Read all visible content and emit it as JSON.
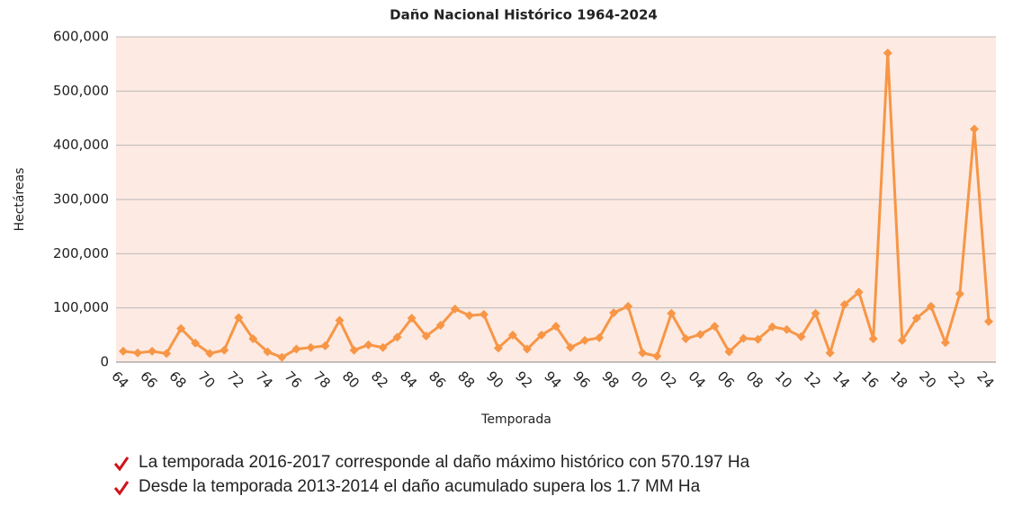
{
  "chart_data": {
    "type": "line",
    "title": "Daño Nacional Histórico 1964-2024",
    "x_label": "Temporada",
    "y_label": "Hectáreas",
    "categories": [
      "64",
      null,
      "66",
      null,
      "68",
      null,
      "70",
      null,
      "72",
      null,
      "74",
      null,
      "76",
      null,
      "78",
      null,
      "80",
      null,
      "82",
      null,
      "84",
      null,
      "86",
      null,
      "88",
      null,
      "90",
      null,
      "92",
      null,
      "94",
      null,
      "96",
      null,
      "98",
      null,
      "00",
      null,
      "02",
      null,
      "04",
      null,
      "06",
      null,
      "08",
      null,
      "10",
      null,
      "12",
      null,
      "14",
      null,
      "16",
      null,
      "18",
      null,
      "20",
      null,
      "22",
      null,
      "24"
    ],
    "series": [
      {
        "name": "Hectáreas",
        "color": "#f79646",
        "values": [
          20000,
          17000,
          20000,
          16000,
          62000,
          35000,
          16000,
          22000,
          82000,
          43000,
          19000,
          9000,
          24000,
          27000,
          30000,
          77000,
          22000,
          32000,
          27000,
          46000,
          81000,
          48000,
          68000,
          98000,
          86000,
          88000,
          26000,
          50000,
          24000,
          50000,
          66000,
          27000,
          40000,
          45000,
          91000,
          103000,
          17000,
          11000,
          90000,
          43000,
          51000,
          66000,
          19000,
          44000,
          42000,
          65000,
          60000,
          47000,
          90000,
          17000,
          106000,
          129000,
          43000,
          570197,
          40000,
          81000,
          103000,
          36000,
          126000,
          430000,
          75000
        ]
      }
    ],
    "ylim": [
      0,
      600000
    ],
    "yticks": [
      0,
      {
        "value": 100000,
        "label": "100,000"
      },
      {
        "value": 200000,
        "label": "200,000"
      },
      {
        "value": 300000,
        "label": "300,000"
      },
      {
        "value": 400000,
        "label": "400,000"
      },
      {
        "value": 500000,
        "label": "500,000"
      },
      {
        "value": 600000,
        "label": "600,000"
      }
    ],
    "grid": true,
    "plot_background": "#fdeae2",
    "notes": [
      "La temporada 2016-2017 corresponde al daño máximo histórico con 570.197 Ha",
      "Desde la temporada 2013-2014 el daño acumulado supera los 1.7 MM Ha"
    ]
  }
}
